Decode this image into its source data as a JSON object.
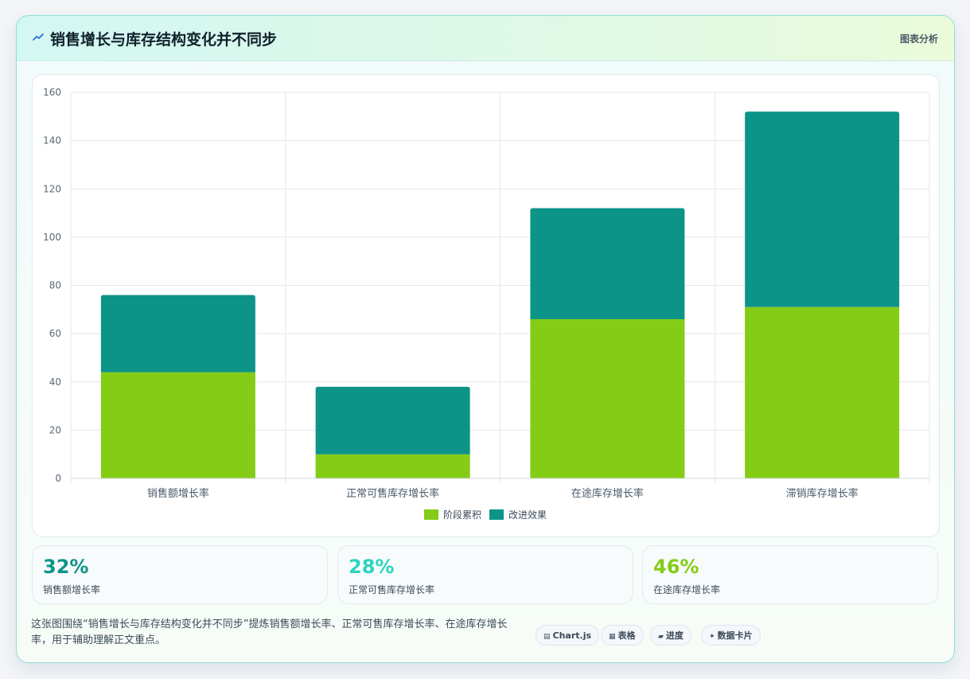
{
  "header": {
    "title": "销售增长与库存结构变化并不同步",
    "link": "图表分析"
  },
  "chart_data": {
    "type": "bar",
    "stacked": true,
    "categories": [
      "销售额增长率",
      "正常可售库存增长率",
      "在途库存增长率",
      "滞销库存增长率"
    ],
    "series": [
      {
        "name": "阶段累积",
        "values": [
          44,
          10,
          66,
          71
        ],
        "color": "#84cc16"
      },
      {
        "name": "改进效果",
        "values": [
          32,
          28,
          46,
          81
        ],
        "color": "#0d9488"
      }
    ],
    "ylim": [
      0,
      160
    ],
    "yticks": [
      0,
      20,
      40,
      60,
      80,
      100,
      120,
      140,
      160
    ],
    "grid": true,
    "legend_position": "bottom"
  },
  "stats": [
    {
      "value": "32%",
      "label": "销售额增长率",
      "color": "#0d9488"
    },
    {
      "value": "28%",
      "label": "正常可售库存增长率",
      "color": "#2dd4bf"
    },
    {
      "value": "46%",
      "label": "在途库存增长率",
      "color": "#84cc16"
    }
  ],
  "description": "这张图围绕“销售增长与库存结构变化并不同步”提炼销售额增长率、正常可售库存增长率、在途库存增长率，用于辅助理解正文重点。",
  "tags": [
    {
      "icon": "chart-icon",
      "glyph": "▤",
      "label": "Chart.js"
    },
    {
      "icon": "table-icon",
      "glyph": "▦",
      "label": "表格"
    },
    {
      "icon": "progress-icon",
      "glyph": "▰",
      "label": "进度"
    },
    {
      "icon": "card-icon",
      "glyph": "✦",
      "label": "数据卡片"
    }
  ]
}
